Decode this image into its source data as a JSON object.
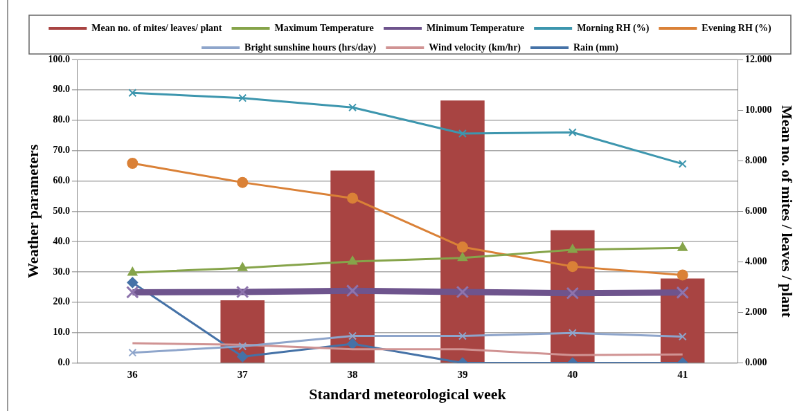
{
  "chart_data": {
    "type": "line",
    "xlabel": "Standard meteorological week",
    "ylabel": "Weather parameters",
    "y2label": "Mean no. of mites / leaves / plant",
    "categories": [
      "36",
      "37",
      "38",
      "39",
      "40",
      "41"
    ],
    "series": [
      {
        "name": "Mean no. of mites/ leaves/ plant",
        "type": "bar",
        "axis": "y2",
        "color": "#a84442",
        "values": [
          null,
          2.48,
          7.61,
          10.38,
          5.25,
          3.34
        ]
      },
      {
        "name": "Maximum Temperature",
        "color": "#86a44a",
        "marker": "triangle",
        "values": [
          29.8,
          31.3,
          33.4,
          34.6,
          37.3,
          37.9
        ]
      },
      {
        "name": "Minimum Temperature",
        "color": "#6e548d",
        "marker": "cross",
        "values": [
          23.3,
          23.4,
          23.8,
          23.4,
          23.0,
          23.2
        ]
      },
      {
        "name": "Morning RH (%)",
        "color": "#3d96ae",
        "marker": "cross",
        "values": [
          89.0,
          87.3,
          84.2,
          75.6,
          76.0,
          65.6
        ]
      },
      {
        "name": "Evening RH (%)",
        "color": "#da8137",
        "marker": "circle",
        "values": [
          65.8,
          59.5,
          54.3,
          38.2,
          31.8,
          29.0
        ]
      },
      {
        "name": "Bright sunshine hours (hrs/day)",
        "color": "#8ea5cb",
        "marker": "cross",
        "values": [
          3.4,
          5.5,
          8.9,
          8.9,
          9.9,
          8.7
        ]
      },
      {
        "name": "Wind velocity (km/hr)",
        "color": "#d09393",
        "marker": "none",
        "values": [
          6.5,
          6.0,
          4.5,
          4.5,
          2.6,
          2.8
        ]
      },
      {
        "name": "Rain (mm)",
        "color": "#4572a7",
        "marker": "diamond",
        "values": [
          26.5,
          2.1,
          6.3,
          0,
          0,
          0
        ]
      }
    ],
    "ylim": [
      0,
      100
    ],
    "yticks": [
      {
        "value": 0,
        "label": "0.0"
      },
      {
        "value": 10,
        "label": "10.0"
      },
      {
        "value": 20,
        "label": "20.0"
      },
      {
        "value": 30,
        "label": "30.0"
      },
      {
        "value": 40,
        "label": "40.0"
      },
      {
        "value": 50,
        "label": "50.0"
      },
      {
        "value": 60,
        "label": "60.0"
      },
      {
        "value": 70,
        "label": "70.0"
      },
      {
        "value": 80,
        "label": "80.0"
      },
      {
        "value": 90,
        "label": "90.0"
      },
      {
        "value": 100,
        "label": "100.0"
      }
    ],
    "y2lim": [
      0,
      12
    ],
    "y2ticks": [
      {
        "value": 0,
        "label": "0.000"
      },
      {
        "value": 2,
        "label": "2.000"
      },
      {
        "value": 4,
        "label": "4.000"
      },
      {
        "value": 6,
        "label": "6.000"
      },
      {
        "value": 8,
        "label": "8.000"
      },
      {
        "value": 10,
        "label": "10.000"
      },
      {
        "value": 12,
        "label": "12.000"
      }
    ],
    "grid": "y",
    "legend": "top"
  }
}
